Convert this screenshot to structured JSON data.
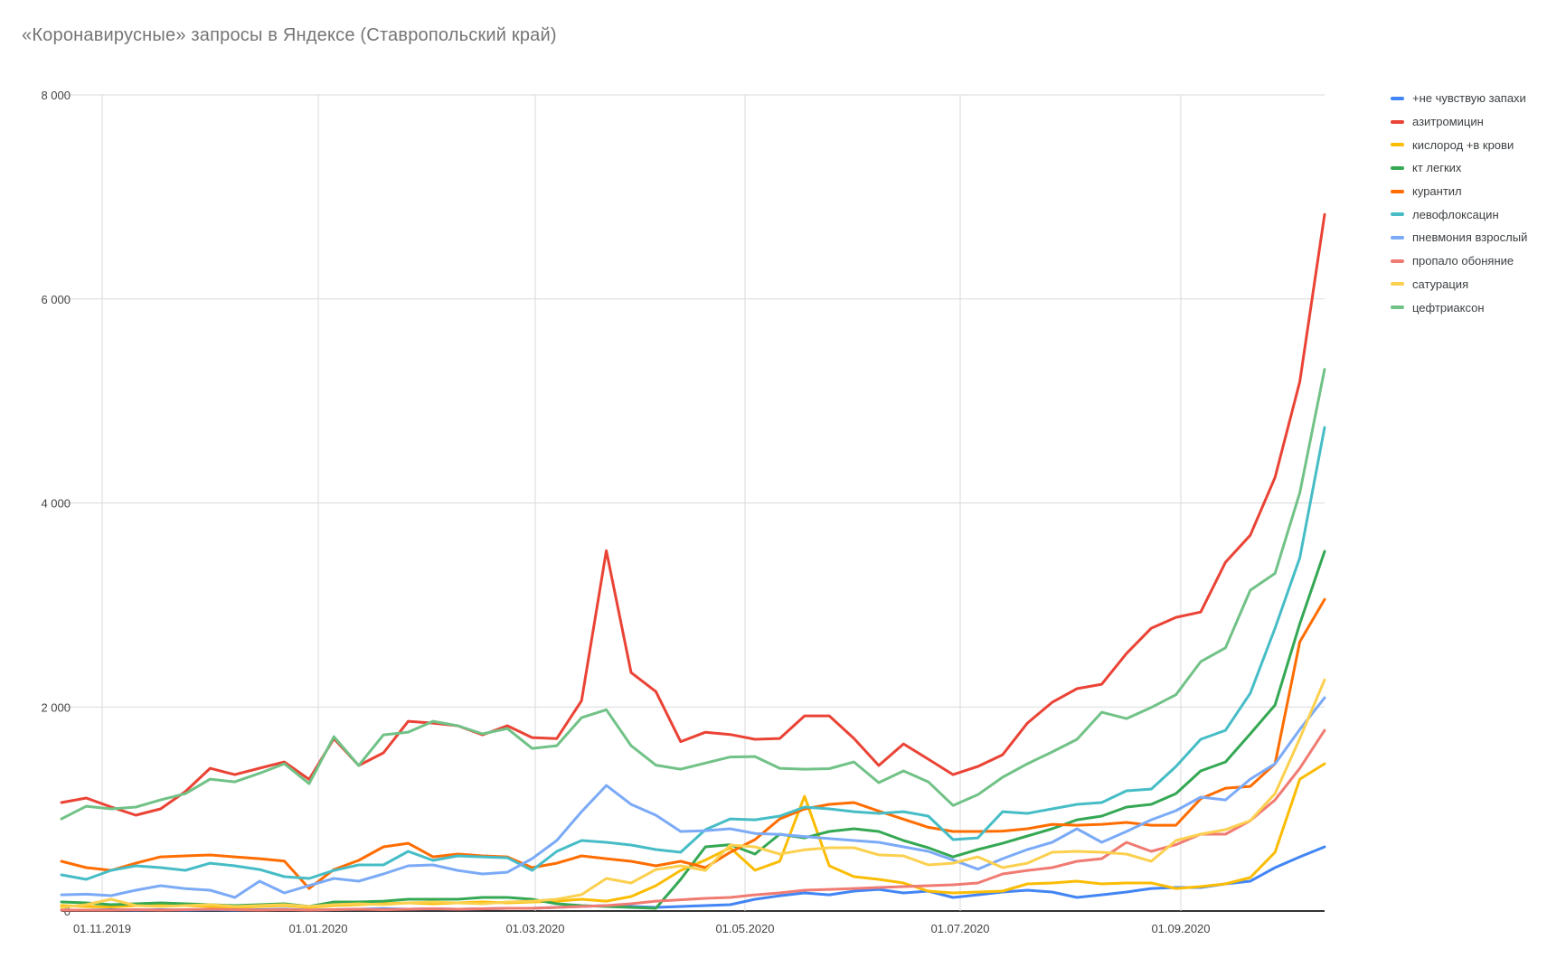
{
  "title": "«Коронавирусные» запросы в Яндексе (Ставропольский край)",
  "chart_data": {
    "type": "line",
    "title": "«Коронавирусные» запросы в Яндексе (Ставропольский край)",
    "x_tick_labels": [
      "01.11.2019",
      "01.01.2020",
      "01.03.2020",
      "01.05.2020",
      "01.07.2020",
      "01.09.2020"
    ],
    "y_tick_labels": [
      "8 000",
      "6 000",
      "4 000",
      "2 000",
      "0"
    ],
    "y_tick_values": [
      8000,
      6000,
      4000,
      2000,
      0
    ],
    "ylim": [
      0,
      8000
    ],
    "grid": true,
    "legend_position": "right",
    "points_per_series": 52,
    "x_unit": "week",
    "series": [
      {
        "name": "+не чувствую запахи",
        "color": "#4285F4",
        "values": [
          9,
          9,
          13,
          9,
          13,
          9,
          13,
          9,
          13,
          18,
          9,
          13,
          18,
          22,
          18,
          22,
          18,
          22,
          27,
          27,
          35,
          44,
          53,
          44,
          35,
          44,
          53,
          62,
          115,
          150,
          177,
          159,
          195,
          212,
          177,
          195,
          133,
          159,
          186,
          204,
          186,
          133,
          159,
          186,
          221,
          230,
          230,
          266,
          292,
          425,
          531,
          629
        ]
      },
      {
        "name": "азитромицин",
        "color": "#EA4335",
        "values": [
          1063,
          1107,
          1020,
          939,
          1001,
          1170,
          1399,
          1337,
          1400,
          1461,
          1290,
          1690,
          1426,
          1550,
          1860,
          1842,
          1816,
          1727,
          1816,
          1700,
          1690,
          2062,
          3532,
          2337,
          2151,
          1660,
          1752,
          1730,
          1683,
          1691,
          1913,
          1913,
          1691,
          1426,
          1638,
          1488,
          1337,
          1417,
          1532,
          1842,
          2046,
          2179,
          2223,
          2524,
          2772,
          2878,
          2931,
          3419,
          3684,
          4251,
          5190,
          6828
        ]
      },
      {
        "name": "кислород +в крови",
        "color": "#FBBC04",
        "values": [
          53,
          44,
          40,
          53,
          62,
          53,
          44,
          35,
          44,
          53,
          35,
          53,
          62,
          71,
          80,
          71,
          80,
          89,
          80,
          89,
          97,
          115,
          97,
          142,
          248,
          398,
          500,
          620,
          400,
          487,
          1125,
          443,
          337,
          310,
          275,
          195,
          177,
          186,
          195,
          266,
          275,
          292,
          266,
          275,
          275,
          221,
          239,
          266,
          328,
          576,
          1293,
          1443
        ]
      },
      {
        "name": "кт легких",
        "color": "#34A853",
        "values": [
          89,
          80,
          62,
          71,
          80,
          71,
          62,
          53,
          62,
          71,
          44,
          89,
          89,
          97,
          115,
          115,
          115,
          133,
          133,
          115,
          71,
          53,
          44,
          35,
          27,
          310,
          629,
          650,
          558,
          753,
          717,
          780,
          806,
          780,
          691,
          620,
          531,
          602,
          664,
          735,
          806,
          894,
          930,
          1019,
          1045,
          1151,
          1373,
          1461,
          1736,
          2019,
          2816,
          3525
        ]
      },
      {
        "name": "курантил",
        "color": "#FF6D01",
        "values": [
          487,
          425,
          399,
          469,
          531,
          540,
          549,
          531,
          513,
          490,
          221,
          407,
          496,
          629,
          664,
          531,
          558,
          540,
          531,
          425,
          469,
          540,
          513,
          487,
          443,
          487,
          425,
          576,
          700,
          903,
          1000,
          1045,
          1063,
          980,
          900,
          820,
          780,
          780,
          783,
          806,
          850,
          841,
          850,
          868,
          841,
          841,
          1100,
          1204,
          1222,
          1443,
          2639,
          3055
        ]
      },
      {
        "name": "левофлоксацин",
        "color": "#46BDC6",
        "values": [
          354,
          310,
          399,
          443,
          425,
          399,
          469,
          443,
          407,
          337,
          319,
          398,
          452,
          452,
          585,
          496,
          540,
          531,
          522,
          398,
          585,
          691,
          673,
          647,
          602,
          576,
          797,
          903,
          894,
          930,
          1019,
          1001,
          974,
          957,
          974,
          930,
          700,
          717,
          974,
          957,
          1001,
          1045,
          1063,
          1178,
          1195,
          1417,
          1683,
          1771,
          2134,
          2772,
          3463,
          4740
        ]
      },
      {
        "name": "пневмония взрослый",
        "color": "#7BAAF7",
        "values": [
          159,
          165,
          151,
          204,
          248,
          220,
          204,
          133,
          292,
          177,
          250,
          319,
          292,
          363,
          443,
          452,
          398,
          363,
          380,
          513,
          691,
          974,
          1231,
          1045,
          939,
          780,
          788,
          806,
          760,
          750,
          730,
          710,
          691,
          673,
          629,
          585,
          500,
          410,
          513,
          602,
          673,
          806,
          673,
          780,
          894,
          983,
          1116,
          1089,
          1293,
          1443,
          1780,
          2090
        ]
      },
      {
        "name": "пропало обоняние",
        "color": "#F07B72",
        "values": [
          9,
          9,
          9,
          13,
          9,
          13,
          18,
          13,
          9,
          13,
          9,
          13,
          18,
          13,
          18,
          22,
          18,
          22,
          27,
          27,
          35,
          44,
          53,
          71,
          97,
          110,
          124,
          133,
          159,
          177,
          204,
          212,
          221,
          230,
          239,
          248,
          257,
          275,
          363,
          398,
          425,
          487,
          513,
          673,
          585,
          650,
          753,
          753,
          886,
          1089,
          1399,
          1771
        ]
      },
      {
        "name": "сатурация",
        "color": "#FCD04F",
        "values": [
          35,
          62,
          115,
          53,
          44,
          53,
          62,
          44,
          53,
          62,
          44,
          62,
          71,
          62,
          80,
          89,
          80,
          71,
          89,
          97,
          115,
          160,
          319,
          275,
          407,
          443,
          398,
          647,
          629,
          558,
          600,
          620,
          620,
          550,
          540,
          452,
          469,
          531,
          425,
          469,
          576,
          585,
          576,
          558,
          487,
          691,
          753,
          797,
          886,
          1151,
          1691,
          2266
        ]
      },
      {
        "name": "цефтриаксон",
        "color": "#71C287",
        "values": [
          903,
          1027,
          1001,
          1019,
          1089,
          1150,
          1293,
          1266,
          1350,
          1443,
          1248,
          1709,
          1426,
          1727,
          1753,
          1860,
          1816,
          1736,
          1789,
          1594,
          1620,
          1895,
          1973,
          1620,
          1430,
          1390,
          1450,
          1510,
          1514,
          1399,
          1390,
          1395,
          1461,
          1258,
          1373,
          1266,
          1035,
          1140,
          1311,
          1443,
          1559,
          1682,
          1948,
          1886,
          1995,
          2120,
          2444,
          2580,
          3144,
          3310,
          4100,
          5310
        ]
      }
    ]
  }
}
